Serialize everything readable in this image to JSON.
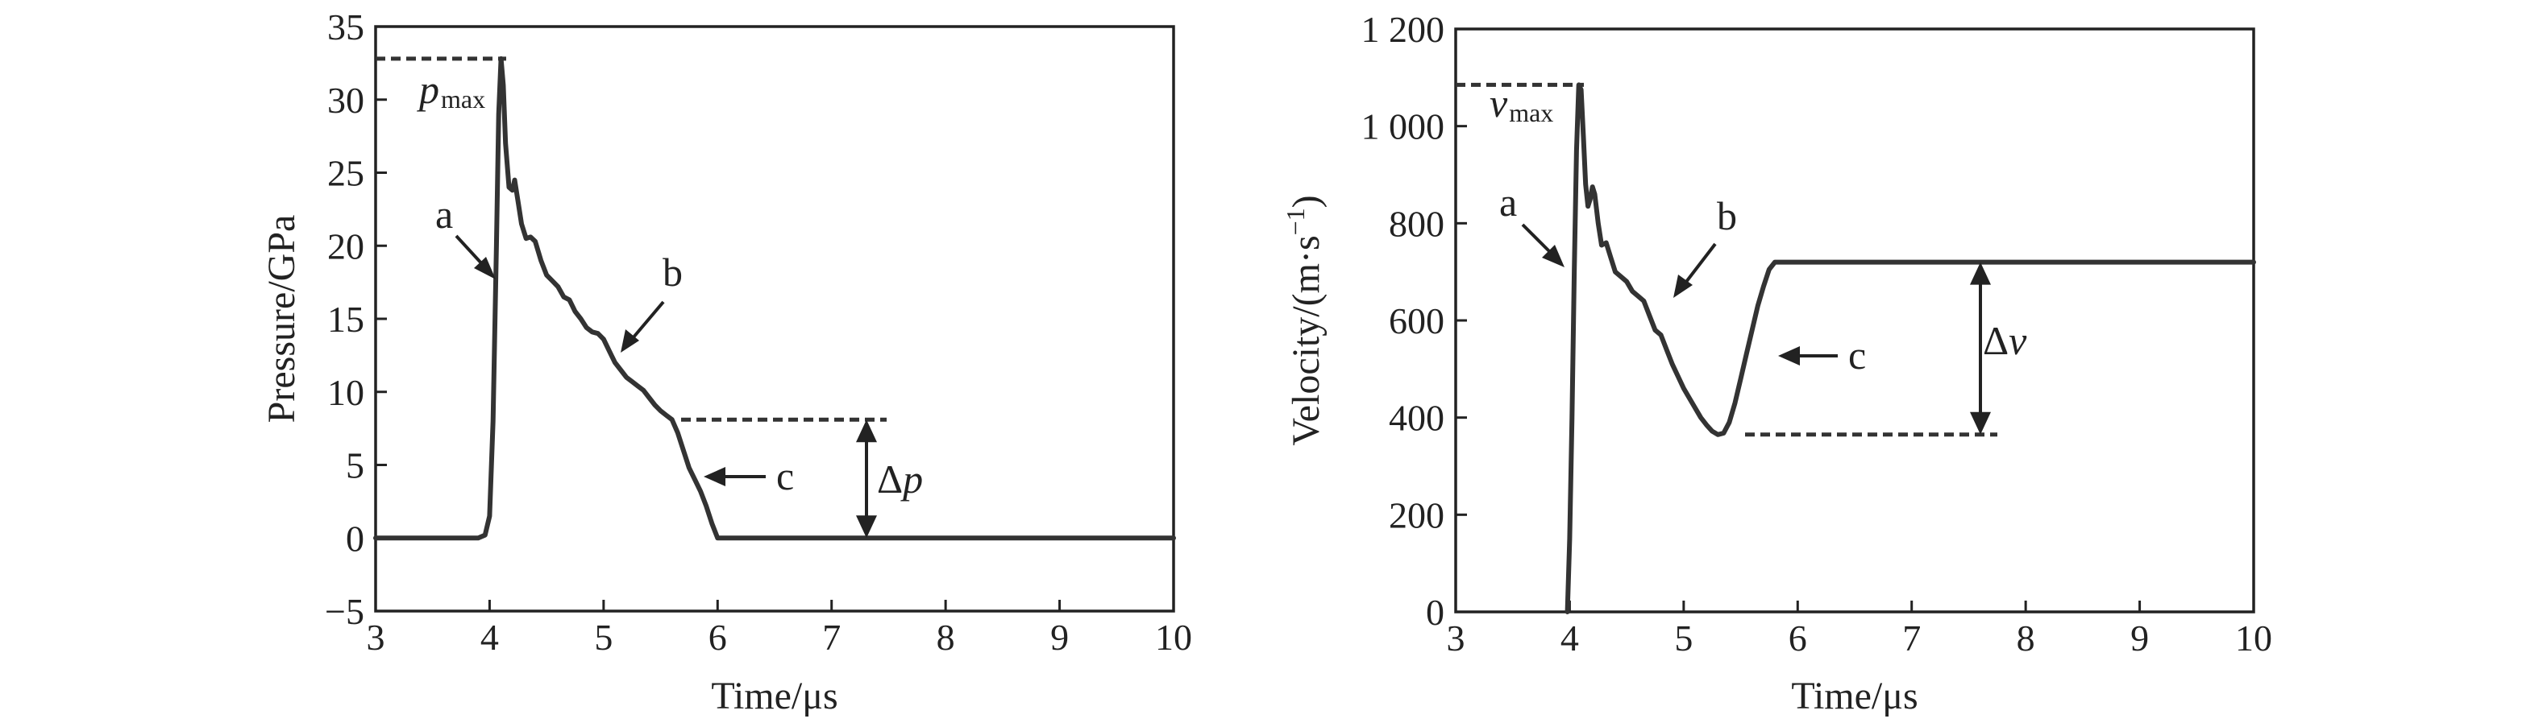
{
  "chart_data": [
    {
      "type": "line",
      "xlabel": "Time/μs",
      "ylabel": "Pressure/GPa",
      "xlim": [
        3,
        10
      ],
      "ylim": [
        -5,
        35
      ],
      "xticks": [
        "3",
        "4",
        "5",
        "6",
        "7",
        "8",
        "9",
        "10"
      ],
      "yticks": [
        "−5",
        "0",
        "5",
        "10",
        "15",
        "20",
        "25",
        "30",
        "35"
      ],
      "grid": false,
      "series": [
        {
          "x": [
            3.0,
            3.9,
            3.96,
            4.0,
            4.03,
            4.06,
            4.08,
            4.1,
            4.12,
            4.14,
            4.17,
            4.2,
            4.22,
            4.25,
            4.28,
            4.32,
            4.36,
            4.4,
            4.45,
            4.5,
            4.55,
            4.6,
            4.65,
            4.7,
            4.75,
            4.8,
            4.85,
            4.9,
            4.95,
            5.0,
            5.05,
            5.1,
            5.15,
            5.2,
            5.25,
            5.3,
            5.35,
            5.4,
            5.45,
            5.5,
            5.55,
            5.6,
            5.65,
            5.7,
            5.75,
            5.8,
            5.85,
            5.9,
            5.95,
            6.0,
            10.0
          ],
          "y": [
            0,
            0,
            0.2,
            1.5,
            8,
            20,
            29,
            32.8,
            31,
            27,
            24,
            23.8,
            24.5,
            23,
            21.5,
            20.5,
            20.6,
            20.3,
            19,
            18,
            17.6,
            17.2,
            16.5,
            16.3,
            15.5,
            15,
            14.4,
            14.1,
            14,
            13.6,
            12.8,
            12,
            11.5,
            11,
            10.7,
            10.4,
            10.1,
            9.6,
            9.1,
            8.7,
            8.4,
            8.1,
            7.2,
            6,
            4.8,
            4,
            3.2,
            2.2,
            1,
            0,
            0
          ]
        }
      ],
      "annotations": {
        "max_label": "p",
        "max_sub": "max",
        "max_value": 32.8,
        "label_a": "a",
        "label_b": "b",
        "label_c": "c",
        "delta_symbol": "Δ",
        "delta_var": "p",
        "delta_low": 0,
        "delta_high": 8.1
      }
    },
    {
      "type": "line",
      "xlabel": "Time/μs",
      "ylabel": "Velocity/(m·s",
      "ylabel_exp": "−1",
      "ylabel_close": ")",
      "xlim": [
        3,
        10
      ],
      "ylim": [
        0,
        1200
      ],
      "xticks": [
        "3",
        "4",
        "5",
        "6",
        "7",
        "8",
        "9",
        "10"
      ],
      "yticks": [
        "0",
        "200",
        "400",
        "600",
        "800",
        "1 000",
        "1 200"
      ],
      "grid": false,
      "series": [
        {
          "x": [
            3.98,
            4.0,
            4.02,
            4.04,
            4.06,
            4.08,
            4.1,
            4.12,
            4.14,
            4.16,
            4.18,
            4.2,
            4.22,
            4.25,
            4.28,
            4.32,
            4.36,
            4.4,
            4.45,
            4.5,
            4.55,
            4.6,
            4.65,
            4.7,
            4.75,
            4.8,
            4.85,
            4.9,
            4.95,
            5.0,
            5.05,
            5.1,
            5.15,
            5.2,
            5.25,
            5.3,
            5.35,
            5.4,
            5.45,
            5.5,
            5.55,
            5.6,
            5.65,
            5.7,
            5.75,
            5.8,
            5.85,
            5.9,
            5.95,
            6.0,
            10.0
          ],
          "y": [
            0,
            150,
            400,
            700,
            950,
            1085,
            1075,
            980,
            880,
            835,
            850,
            875,
            860,
            800,
            755,
            760,
            730,
            700,
            690,
            680,
            660,
            650,
            640,
            610,
            580,
            570,
            540,
            510,
            485,
            460,
            440,
            420,
            400,
            385,
            372,
            365,
            368,
            390,
            430,
            480,
            530,
            580,
            630,
            670,
            705,
            720,
            720,
            720,
            720,
            720,
            720
          ]
        }
      ],
      "annotations": {
        "max_label": "v",
        "max_sub": "max",
        "max_value": 1085,
        "label_a": "a",
        "label_b": "b",
        "label_c": "c",
        "delta_symbol": "Δ",
        "delta_var": "v",
        "delta_low": 365,
        "delta_high": 720
      }
    }
  ]
}
